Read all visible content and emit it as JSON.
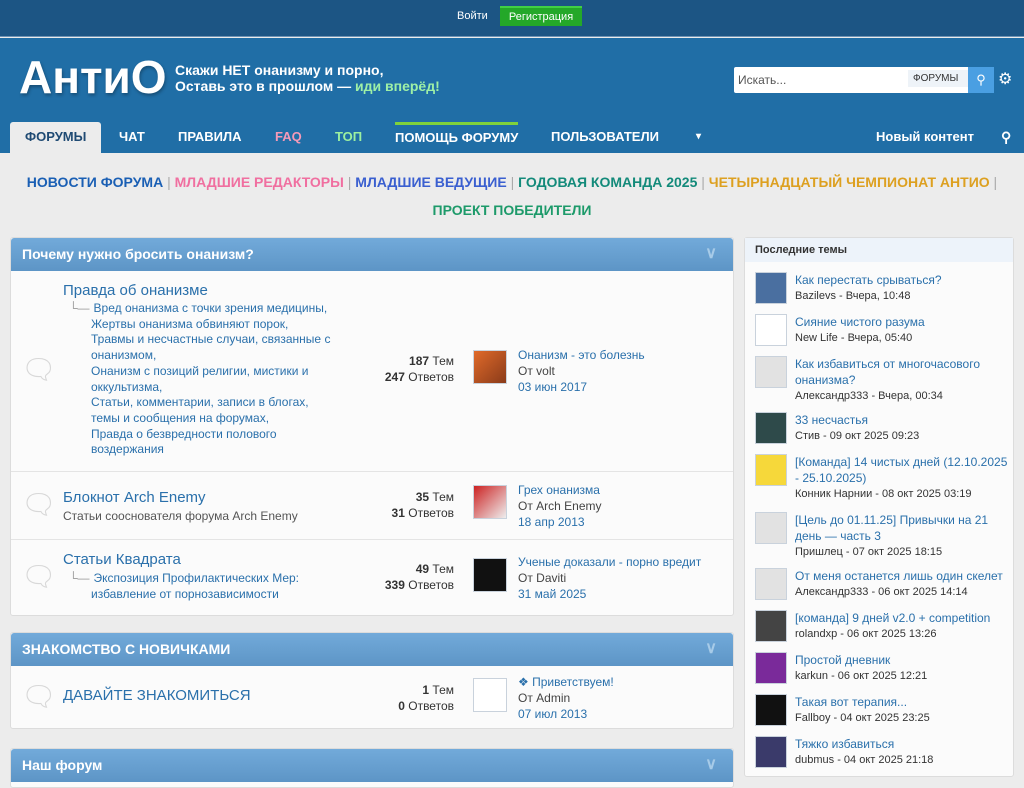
{
  "topbar": {
    "login": "Войти",
    "register": "Регистрация"
  },
  "header": {
    "logo": "АнтиО",
    "slogan1": "Скажи НЕТ онанизму и порно,",
    "slogan2": "Оставь это в прошлом — ",
    "slogan_go": "иди вперёд!",
    "search_placeholder": "Искать...",
    "search_scope": "ФОРУМЫ"
  },
  "nav": {
    "tabs": [
      "ФОРУМЫ",
      "ЧАТ",
      "ПРАВИЛА",
      "FAQ",
      "ТОП",
      "ПОМОЩЬ ФОРУМУ",
      "ПОЛЬЗОВАТЕЛИ"
    ],
    "more": "▾",
    "new_content": "Новый контент"
  },
  "announcements": [
    {
      "label": "НОВОСТИ ФОРУМА",
      "color": "#1a5fb4"
    },
    {
      "label": "МЛАДШИЕ РЕДАКТОРЫ",
      "color": "#f06fa0"
    },
    {
      "label": "МЛАДШИЕ ВЕДУЩИЕ",
      "color": "#3a5fd0"
    },
    {
      "label": "ГОДОВАЯ КОМАНДА 2025",
      "color": "#138a7a"
    },
    {
      "label": "ЧЕТЫРНАДЦАТЫЙ ЧЕМПИОНАТ АНТИО",
      "color": "#dda020"
    },
    {
      "label": "ПРОЕКТ ПОБЕДИТЕЛИ",
      "color": "#1d9a6a"
    }
  ],
  "categories": [
    {
      "title": "Почему нужно бросить онанизм?",
      "forums": [
        {
          "title": "Правда об онанизме",
          "subs": [
            "Вред онанизма с точки зрения медицины,",
            "Жертвы онанизма обвиняют порок,",
            "Травмы и несчастные случаи, связанные с онанизмом,",
            "Онанизм с позиций религии, мистики и оккультизма,",
            "Статьи, комментарии, записи в блогах, темы и сообщения на форумах,",
            "Правда о безвредности полового воздержания"
          ],
          "topics": "187",
          "topics_label": "Тем",
          "replies": "247",
          "replies_label": "Ответов",
          "last_title": "Онанизм - это болезнь",
          "last_by": "От volt",
          "last_date": "03 июн 2017"
        },
        {
          "title": "Блокнот Arch Enemy",
          "desc": "Статьи сооснователя форума Arch Enemy",
          "topics": "35",
          "topics_label": "Тем",
          "replies": "31",
          "replies_label": "Ответов",
          "last_title": "Грех онанизма",
          "last_by": "От Arch Enemy",
          "last_date": "18 апр 2013"
        },
        {
          "title": "Статьи Квадрата",
          "subs": [
            "Экспозиция Профилактических Мер: избавление от порнозависимости"
          ],
          "topics": "49",
          "topics_label": "Тем",
          "replies": "339",
          "replies_label": "Ответов",
          "last_title": "Ученые доказали - порно вредит",
          "last_by": "От Daviti",
          "last_date": "31 май 2025"
        }
      ]
    },
    {
      "title": "ЗНАКОМСТВО С НОВИЧКАМИ",
      "forums": [
        {
          "title": "ДАВАЙТЕ ЗНАКОМИТЬСЯ",
          "topics": "1",
          "topics_label": "Тем",
          "replies": "0",
          "replies_label": "Ответов",
          "last_title": "❖ Приветствуем!",
          "last_by": "От Admin",
          "last_date": "07 июл 2013"
        }
      ]
    },
    {
      "title": "Наш форум"
    }
  ],
  "sidebar": {
    "title": "Последние темы",
    "items": [
      {
        "title": "Как перестать срываться?",
        "meta": "Bazilevs - Вчера, 10:48"
      },
      {
        "title": "Сияние чистого разума",
        "meta": "New Life - Вчера, 05:40"
      },
      {
        "title": "Как избавиться от многочасового онанизма?",
        "meta": "Александр333 - Вчера, 00:34"
      },
      {
        "title": "33 несчастья",
        "meta": "Стив - 09 окт 2025 09:23"
      },
      {
        "title": "[Команда] 14 чистых дней (12.10.2025 - 25.10.2025)",
        "meta": "Конник Нарнии - 08 окт 2025 03:19"
      },
      {
        "title": "[Цель до 01.11.25] Привычки на 21 день — часть 3",
        "meta": "Пришлец - 07 окт 2025 18:15"
      },
      {
        "title": "От меня останется лишь один скелет",
        "meta": "Александр333 - 06 окт 2025 14:14"
      },
      {
        "title": "[команда] 9 дней v2.0 + competition",
        "meta": "rolandxp - 06 окт 2025 13:26"
      },
      {
        "title": "Простой дневник",
        "meta": "karkun - 06 окт 2025 12:21"
      },
      {
        "title": "Такая вот терапия...",
        "meta": "Fallboy - 04 окт 2025 23:25"
      },
      {
        "title": "Тяжко избавиться",
        "meta": "dubmus - 04 окт 2025 21:18"
      }
    ]
  }
}
